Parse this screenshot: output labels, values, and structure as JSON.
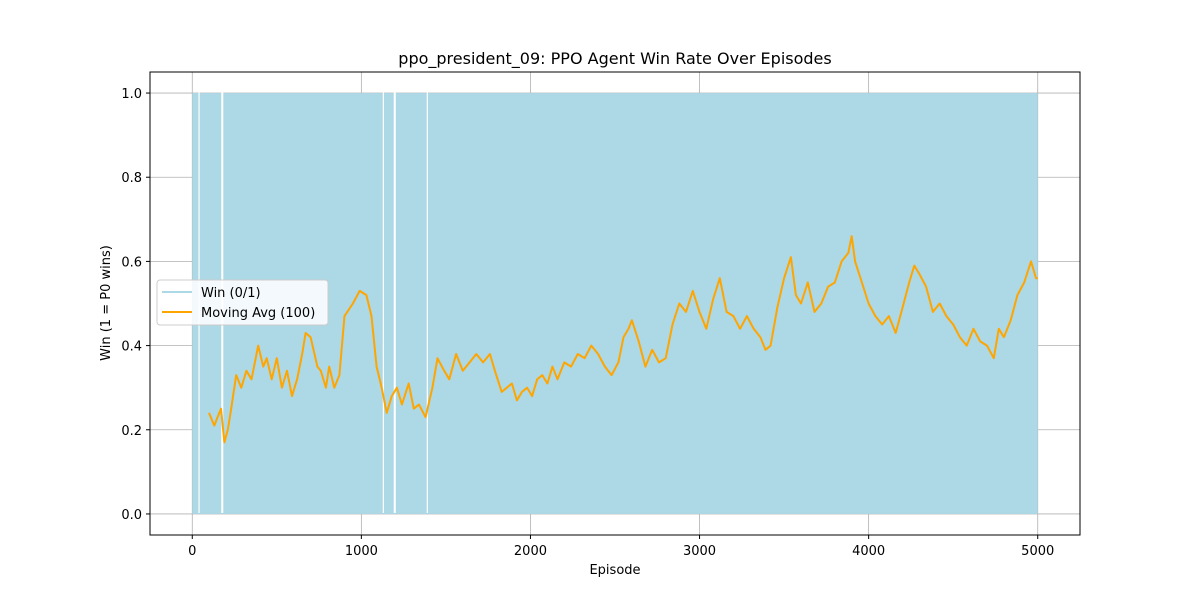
{
  "colors": {
    "win": "#add8e6",
    "moving_avg": "#ffa500",
    "grid": "#b0b0b0",
    "axes": "#000000"
  },
  "chart_data": {
    "type": "line",
    "title": "ppo_president_09: PPO Agent Win Rate Over Episodes",
    "xlabel": "Episode",
    "ylabel": "Win (1 = P0 wins)",
    "xlim": [
      -250,
      5250
    ],
    "ylim": [
      -0.05,
      1.05
    ],
    "x_ticks": [
      0,
      1000,
      2000,
      3000,
      4000,
      5000
    ],
    "x_tick_labels": [
      "0",
      "1000",
      "2000",
      "3000",
      "4000",
      "5000"
    ],
    "y_ticks": [
      0.0,
      0.2,
      0.4,
      0.6,
      0.8,
      1.0
    ],
    "y_tick_labels": [
      "0.0",
      "0.2",
      "0.4",
      "0.6",
      "0.8",
      "1.0"
    ],
    "grid": true,
    "legend_position": "center-left",
    "legend": [
      "Win (0/1)",
      "Moving Avg (100)"
    ],
    "series": [
      {
        "name": "Win (0/1)",
        "kind": "binary-per-episode",
        "x_range": [
          0,
          5000
        ],
        "values": [
          0,
          1
        ],
        "episodes_at_0_only": [
          40,
          175,
          180,
          1130,
          1195,
          1200,
          1390
        ]
      },
      {
        "name": "Moving Avg (100)",
        "x": [
          99,
          130,
          150,
          170,
          190,
          210,
          230,
          260,
          290,
          320,
          350,
          390,
          420,
          440,
          470,
          500,
          530,
          560,
          590,
          620,
          650,
          670,
          700,
          740,
          760,
          790,
          810,
          840,
          870,
          900,
          950,
          990,
          1030,
          1060,
          1090,
          1120,
          1150,
          1180,
          1210,
          1240,
          1280,
          1310,
          1340,
          1380,
          1420,
          1450,
          1490,
          1520,
          1560,
          1600,
          1640,
          1680,
          1720,
          1760,
          1790,
          1830,
          1860,
          1890,
          1920,
          1950,
          1980,
          2010,
          2040,
          2070,
          2100,
          2130,
          2160,
          2200,
          2240,
          2280,
          2320,
          2360,
          2400,
          2440,
          2480,
          2520,
          2550,
          2580,
          2600,
          2640,
          2680,
          2720,
          2760,
          2800,
          2840,
          2880,
          2920,
          2960,
          3000,
          3040,
          3080,
          3120,
          3160,
          3200,
          3240,
          3280,
          3320,
          3360,
          3390,
          3420,
          3460,
          3500,
          3540,
          3570,
          3600,
          3640,
          3680,
          3720,
          3760,
          3800,
          3840,
          3880,
          3900,
          3920,
          3960,
          4000,
          4040,
          4080,
          4120,
          4160,
          4200,
          4240,
          4270,
          4300,
          4340,
          4380,
          4420,
          4460,
          4500,
          4540,
          4580,
          4620,
          4660,
          4700,
          4740,
          4770,
          4800,
          4840,
          4880,
          4920,
          4960,
          4990,
          5000
        ],
        "values": [
          0.24,
          0.21,
          0.23,
          0.25,
          0.17,
          0.2,
          0.25,
          0.33,
          0.3,
          0.34,
          0.32,
          0.4,
          0.35,
          0.37,
          0.32,
          0.37,
          0.3,
          0.34,
          0.28,
          0.32,
          0.38,
          0.43,
          0.42,
          0.35,
          0.34,
          0.3,
          0.35,
          0.3,
          0.33,
          0.47,
          0.5,
          0.53,
          0.52,
          0.47,
          0.35,
          0.3,
          0.24,
          0.28,
          0.3,
          0.26,
          0.31,
          0.25,
          0.26,
          0.23,
          0.3,
          0.37,
          0.34,
          0.32,
          0.38,
          0.34,
          0.36,
          0.38,
          0.36,
          0.38,
          0.34,
          0.29,
          0.3,
          0.31,
          0.27,
          0.29,
          0.3,
          0.28,
          0.32,
          0.33,
          0.31,
          0.35,
          0.32,
          0.36,
          0.35,
          0.38,
          0.37,
          0.4,
          0.38,
          0.35,
          0.33,
          0.36,
          0.42,
          0.44,
          0.46,
          0.41,
          0.35,
          0.39,
          0.36,
          0.37,
          0.45,
          0.5,
          0.48,
          0.53,
          0.48,
          0.44,
          0.51,
          0.56,
          0.48,
          0.47,
          0.44,
          0.47,
          0.44,
          0.42,
          0.39,
          0.4,
          0.49,
          0.56,
          0.61,
          0.52,
          0.5,
          0.55,
          0.48,
          0.5,
          0.54,
          0.55,
          0.6,
          0.62,
          0.66,
          0.6,
          0.55,
          0.5,
          0.47,
          0.45,
          0.47,
          0.43,
          0.49,
          0.55,
          0.59,
          0.57,
          0.54,
          0.48,
          0.5,
          0.47,
          0.45,
          0.42,
          0.4,
          0.44,
          0.41,
          0.4,
          0.37,
          0.44,
          0.42,
          0.46,
          0.52,
          0.55,
          0.6,
          0.56,
          0.56
        ]
      }
    ]
  }
}
